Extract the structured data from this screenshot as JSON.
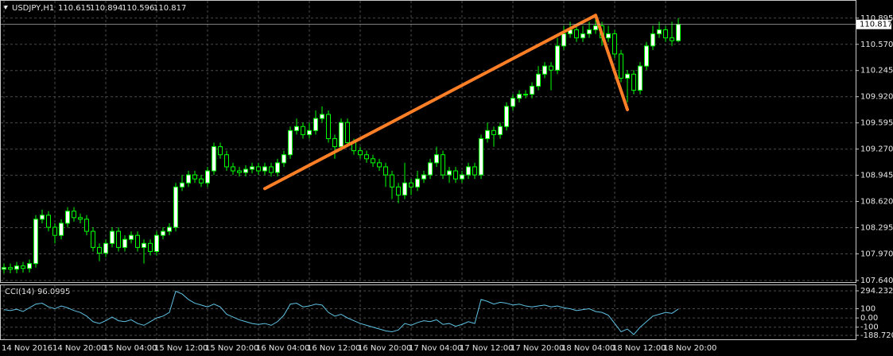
{
  "chart_data": [
    {
      "type": "candlestick",
      "title": "USDJPY,H1",
      "categories": [
        "14 Nov 2016",
        null,
        null,
        null,
        null,
        null,
        null,
        null,
        "14 Nov 20:00",
        null,
        null,
        null,
        null,
        null,
        null,
        null,
        "15 Nov 04:00",
        null,
        null,
        null,
        null,
        null,
        null,
        null,
        "15 Nov 12:00",
        null,
        null,
        null,
        null,
        null,
        null,
        null,
        "15 Nov 20:00",
        null,
        null,
        null,
        null,
        null,
        null,
        null,
        "16 Nov 04:00",
        null,
        null,
        null,
        null,
        null,
        null,
        null,
        "16 Nov 12:00",
        null,
        null,
        null,
        null,
        null,
        null,
        null,
        "16 Nov 20:00",
        null,
        null,
        null,
        null,
        null,
        null,
        null,
        "17 Nov 04:00",
        null,
        null,
        null,
        null,
        null,
        null,
        null,
        "17 Nov 12:00",
        null,
        null,
        null,
        null,
        null,
        null,
        null,
        "17 Nov 20:00",
        null,
        null,
        null,
        null,
        null,
        null,
        null,
        "18 Nov 04:00",
        null,
        null,
        null,
        null,
        null,
        null,
        null,
        "18 Nov 12:00",
        null,
        null,
        null,
        null,
        null,
        null,
        null,
        "18 Nov 20:00",
        null,
        null
      ],
      "candles": [
        [
          107.78,
          107.85,
          107.73,
          107.8
        ],
        [
          107.8,
          107.85,
          107.73,
          107.78
        ],
        [
          107.78,
          107.87,
          107.73,
          107.82
        ],
        [
          107.82,
          107.87,
          107.74,
          107.79
        ],
        [
          107.79,
          107.9,
          107.74,
          107.85
        ],
        [
          107.85,
          108.45,
          107.8,
          108.4
        ],
        [
          108.4,
          108.52,
          108.35,
          108.45
        ],
        [
          108.45,
          108.5,
          108.25,
          108.3
        ],
        [
          108.3,
          108.35,
          108.1,
          108.2
        ],
        [
          108.2,
          108.4,
          108.15,
          108.35
        ],
        [
          108.35,
          108.55,
          108.3,
          108.5
        ],
        [
          108.5,
          108.55,
          108.37,
          108.42
        ],
        [
          108.42,
          108.47,
          108.35,
          108.4
        ],
        [
          108.4,
          108.45,
          108.2,
          108.25
        ],
        [
          108.25,
          108.3,
          108.0,
          108.05
        ],
        [
          108.05,
          108.1,
          107.88,
          107.98
        ],
        [
          107.98,
          108.15,
          107.93,
          108.1
        ],
        [
          108.1,
          108.3,
          108.05,
          108.25
        ],
        [
          108.25,
          108.3,
          108.0,
          108.05
        ],
        [
          108.05,
          108.2,
          108.0,
          108.15
        ],
        [
          108.15,
          108.25,
          108.1,
          108.2
        ],
        [
          108.2,
          108.25,
          108.0,
          108.05
        ],
        [
          108.05,
          108.15,
          107.85,
          108.1
        ],
        [
          108.1,
          108.15,
          107.95,
          108.0
        ],
        [
          108.0,
          108.25,
          107.95,
          108.2
        ],
        [
          108.2,
          108.3,
          108.15,
          108.25
        ],
        [
          108.25,
          108.35,
          108.2,
          108.3
        ],
        [
          108.3,
          108.85,
          108.25,
          108.8
        ],
        [
          108.8,
          108.95,
          108.75,
          108.85
        ],
        [
          108.85,
          109.0,
          108.8,
          108.95
        ],
        [
          108.95,
          109.0,
          108.85,
          108.9
        ],
        [
          108.9,
          108.95,
          108.8,
          108.85
        ],
        [
          108.85,
          109.05,
          108.8,
          109.0
        ],
        [
          109.0,
          109.35,
          108.95,
          109.3
        ],
        [
          109.3,
          109.35,
          109.15,
          109.2
        ],
        [
          109.2,
          109.25,
          109.0,
          109.05
        ],
        [
          109.05,
          109.1,
          108.95,
          109.0
        ],
        [
          109.0,
          109.05,
          108.93,
          108.98
        ],
        [
          108.98,
          109.07,
          108.93,
          109.02
        ],
        [
          109.02,
          109.1,
          108.97,
          109.05
        ],
        [
          109.05,
          109.1,
          108.95,
          109.0
        ],
        [
          109.0,
          109.1,
          108.95,
          109.05
        ],
        [
          109.05,
          109.1,
          108.93,
          108.98
        ],
        [
          108.98,
          109.15,
          108.93,
          109.1
        ],
        [
          109.1,
          109.25,
          109.05,
          109.2
        ],
        [
          109.2,
          109.55,
          109.15,
          109.5
        ],
        [
          109.5,
          109.65,
          109.45,
          109.55
        ],
        [
          109.55,
          109.6,
          109.4,
          109.45
        ],
        [
          109.45,
          109.6,
          109.4,
          109.5
        ],
        [
          109.5,
          109.75,
          109.45,
          109.65
        ],
        [
          109.65,
          109.8,
          109.6,
          109.7
        ],
        [
          109.7,
          109.75,
          109.35,
          109.4
        ],
        [
          109.4,
          109.45,
          109.15,
          109.3
        ],
        [
          109.3,
          109.65,
          109.25,
          109.6
        ],
        [
          109.6,
          109.65,
          109.3,
          109.35
        ],
        [
          109.35,
          109.4,
          109.2,
          109.25
        ],
        [
          109.25,
          109.3,
          109.15,
          109.2
        ],
        [
          109.2,
          109.25,
          109.1,
          109.15
        ],
        [
          109.15,
          109.2,
          109.05,
          109.1
        ],
        [
          109.1,
          109.15,
          109.0,
          109.05
        ],
        [
          109.05,
          109.1,
          108.8,
          108.95
        ],
        [
          108.95,
          109.0,
          108.65,
          108.8
        ],
        [
          108.8,
          108.85,
          108.6,
          108.7
        ],
        [
          108.7,
          109.1,
          108.65,
          108.85
        ],
        [
          108.85,
          108.9,
          108.7,
          108.8
        ],
        [
          108.8,
          109.0,
          108.75,
          108.9
        ],
        [
          108.9,
          109.0,
          108.85,
          108.95
        ],
        [
          108.95,
          109.15,
          108.9,
          109.1
        ],
        [
          109.1,
          109.3,
          109.05,
          109.2
        ],
        [
          109.2,
          109.25,
          108.9,
          108.95
        ],
        [
          108.95,
          109.05,
          108.85,
          109.0
        ],
        [
          109.0,
          109.05,
          108.85,
          108.9
        ],
        [
          108.9,
          109.0,
          108.85,
          108.95
        ],
        [
          108.95,
          109.1,
          108.9,
          109.05
        ],
        [
          109.05,
          109.1,
          108.9,
          108.95
        ],
        [
          108.95,
          109.45,
          108.9,
          109.4
        ],
        [
          109.4,
          109.6,
          109.35,
          109.5
        ],
        [
          109.5,
          109.55,
          109.3,
          109.45
        ],
        [
          109.45,
          109.6,
          109.4,
          109.55
        ],
        [
          109.55,
          109.85,
          109.5,
          109.8
        ],
        [
          109.8,
          109.95,
          109.75,
          109.9
        ],
        [
          109.9,
          110.0,
          109.85,
          109.95
        ],
        [
          109.95,
          110.0,
          109.9,
          109.95
        ],
        [
          109.95,
          110.1,
          109.9,
          110.05
        ],
        [
          110.05,
          110.3,
          110.0,
          110.2
        ],
        [
          110.2,
          110.35,
          110.15,
          110.3
        ],
        [
          110.3,
          110.35,
          110.0,
          110.25
        ],
        [
          110.25,
          110.65,
          110.2,
          110.55
        ],
        [
          110.55,
          110.8,
          110.5,
          110.7
        ],
        [
          110.7,
          110.85,
          110.65,
          110.75
        ],
        [
          110.75,
          110.8,
          110.6,
          110.65
        ],
        [
          110.65,
          110.8,
          110.6,
          110.7
        ],
        [
          110.7,
          110.85,
          110.65,
          110.75
        ],
        [
          110.75,
          110.93,
          110.7,
          110.8
        ],
        [
          110.8,
          110.85,
          110.55,
          110.65
        ],
        [
          110.65,
          110.8,
          110.6,
          110.7
        ],
        [
          110.7,
          110.75,
          110.4,
          110.45
        ],
        [
          110.45,
          110.5,
          110.1,
          110.15
        ],
        [
          110.15,
          110.25,
          109.85,
          110.2
        ],
        [
          110.2,
          110.25,
          109.95,
          110.0
        ],
        [
          110.0,
          110.35,
          109.95,
          110.3
        ],
        [
          110.3,
          110.6,
          110.25,
          110.55
        ],
        [
          110.55,
          110.8,
          110.5,
          110.7
        ],
        [
          110.7,
          110.85,
          110.65,
          110.75
        ],
        [
          110.75,
          110.8,
          110.6,
          110.65
        ],
        [
          110.65,
          110.85,
          110.55,
          110.615
        ],
        [
          110.615,
          110.894,
          110.596,
          110.817
        ]
      ],
      "up_color": "#ffffff",
      "down_color": "#000000",
      "wick_color": "#00ff00",
      "ylim": [
        107.62,
        111.11
      ],
      "yticks": [
        110.895,
        {
          "value": 110.57,
          "label": "110.570"
        },
        110.245,
        {
          "value": 109.92,
          "label": "109.920"
        },
        109.595,
        {
          "value": 109.27,
          "label": "109.270"
        },
        108.945,
        {
          "value": 108.62,
          "label": "108.620"
        },
        108.295,
        {
          "value": 107.97,
          "label": "107.970"
        },
        {
          "value": 107.64,
          "label": "107.640"
        }
      ],
      "grid": true,
      "trendline": {
        "color": "#ff7f27",
        "x": [
          41,
          93,
          98
        ],
        "y": [
          108.78,
          110.93,
          109.76
        ]
      }
    },
    {
      "type": "line",
      "title": "CCI(14)",
      "color": "#5fc3e4",
      "values": [
        90,
        80,
        95,
        70,
        110,
        150,
        160,
        120,
        100,
        130,
        110,
        80,
        60,
        20,
        -40,
        -60,
        -30,
        10,
        -30,
        -40,
        -20,
        -60,
        -80,
        -40,
        0,
        20,
        60,
        290,
        260,
        200,
        160,
        140,
        120,
        150,
        120,
        40,
        10,
        -20,
        -40,
        -60,
        -70,
        -60,
        -80,
        -40,
        30,
        150,
        160,
        120,
        130,
        150,
        140,
        60,
        20,
        40,
        0,
        -30,
        -60,
        -80,
        -100,
        -120,
        -140,
        -150,
        -130,
        -60,
        -80,
        -50,
        -30,
        -40,
        -20,
        -70,
        -60,
        -90,
        -70,
        -40,
        -60,
        200,
        180,
        150,
        170,
        160,
        140,
        150,
        130,
        120,
        130,
        140,
        120,
        130,
        110,
        100,
        80,
        90,
        100,
        70,
        60,
        30,
        -60,
        -150,
        -120,
        -180,
        -100,
        -40,
        20,
        40,
        60,
        50,
        96.0995
      ],
      "ylim": [
        -188.7204,
        294.2325
      ],
      "yticks": [
        294.2325,
        100,
        {
          "value": 0,
          "label": "0.00"
        },
        -100,
        -188.7204
      ],
      "grid": true
    }
  ]
}
